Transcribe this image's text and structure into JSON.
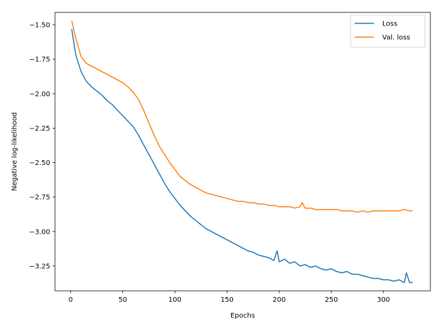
{
  "chart_data": {
    "type": "line",
    "title": "",
    "xlabel": "Epochs",
    "ylabel": "Negative log-likelihood",
    "xlim": [
      -15,
      345
    ],
    "ylim": [
      -3.43,
      -1.41
    ],
    "xticks": [
      0,
      50,
      100,
      150,
      200,
      250,
      300
    ],
    "xtick_labels": [
      "0",
      "50",
      "100",
      "150",
      "200",
      "250",
      "300"
    ],
    "yticks": [
      -1.5,
      -1.75,
      -2.0,
      -2.25,
      -2.5,
      -2.75,
      -3.0,
      -3.25
    ],
    "ytick_labels": [
      "−1.50",
      "−1.75",
      "−2.00",
      "−2.25",
      "−2.50",
      "−2.75",
      "−3.00",
      "−3.25"
    ],
    "grid": false,
    "legend_position": "top-right",
    "series": [
      {
        "name": "Loss",
        "color": "#1f77b4",
        "x": [
          1,
          5,
          10,
          15,
          20,
          25,
          30,
          35,
          40,
          45,
          50,
          55,
          60,
          65,
          70,
          75,
          80,
          85,
          90,
          95,
          100,
          105,
          110,
          115,
          120,
          125,
          130,
          135,
          140,
          145,
          150,
          155,
          160,
          165,
          170,
          175,
          180,
          185,
          190,
          195,
          198,
          200,
          205,
          210,
          215,
          220,
          225,
          230,
          235,
          240,
          245,
          250,
          255,
          260,
          265,
          270,
          275,
          280,
          285,
          290,
          295,
          300,
          305,
          310,
          315,
          320,
          322,
          325,
          328
        ],
        "y": [
          -1.53,
          -1.72,
          -1.84,
          -1.91,
          -1.95,
          -1.98,
          -2.01,
          -2.05,
          -2.08,
          -2.12,
          -2.16,
          -2.2,
          -2.24,
          -2.3,
          -2.37,
          -2.44,
          -2.51,
          -2.58,
          -2.65,
          -2.71,
          -2.76,
          -2.81,
          -2.85,
          -2.89,
          -2.92,
          -2.95,
          -2.98,
          -3.0,
          -3.02,
          -3.04,
          -3.06,
          -3.08,
          -3.1,
          -3.12,
          -3.14,
          -3.15,
          -3.17,
          -3.18,
          -3.19,
          -3.21,
          -3.14,
          -3.22,
          -3.2,
          -3.23,
          -3.22,
          -3.25,
          -3.24,
          -3.26,
          -3.25,
          -3.27,
          -3.28,
          -3.27,
          -3.29,
          -3.3,
          -3.29,
          -3.31,
          -3.31,
          -3.32,
          -3.33,
          -3.34,
          -3.34,
          -3.35,
          -3.35,
          -3.36,
          -3.35,
          -3.37,
          -3.3,
          -3.37,
          -3.37
        ]
      },
      {
        "name": "Val. loss",
        "color": "#ff7f0e",
        "x": [
          1,
          5,
          10,
          15,
          20,
          25,
          30,
          35,
          40,
          45,
          50,
          55,
          60,
          65,
          70,
          75,
          80,
          85,
          90,
          95,
          100,
          105,
          110,
          115,
          120,
          125,
          130,
          135,
          140,
          145,
          150,
          155,
          160,
          165,
          170,
          175,
          180,
          185,
          190,
          195,
          200,
          205,
          210,
          215,
          220,
          222,
          225,
          230,
          235,
          240,
          245,
          250,
          255,
          260,
          265,
          270,
          275,
          280,
          285,
          290,
          295,
          300,
          305,
          310,
          315,
          320,
          325,
          328
        ],
        "y": [
          -1.47,
          -1.6,
          -1.73,
          -1.78,
          -1.8,
          -1.82,
          -1.84,
          -1.86,
          -1.88,
          -1.9,
          -1.92,
          -1.95,
          -1.99,
          -2.04,
          -2.12,
          -2.21,
          -2.3,
          -2.38,
          -2.44,
          -2.5,
          -2.55,
          -2.6,
          -2.63,
          -2.66,
          -2.68,
          -2.7,
          -2.72,
          -2.73,
          -2.74,
          -2.75,
          -2.76,
          -2.77,
          -2.78,
          -2.78,
          -2.79,
          -2.79,
          -2.8,
          -2.8,
          -2.81,
          -2.81,
          -2.82,
          -2.82,
          -2.82,
          -2.83,
          -2.82,
          -2.79,
          -2.83,
          -2.83,
          -2.84,
          -2.84,
          -2.84,
          -2.84,
          -2.84,
          -2.85,
          -2.85,
          -2.85,
          -2.86,
          -2.85,
          -2.86,
          -2.85,
          -2.85,
          -2.85,
          -2.85,
          -2.85,
          -2.85,
          -2.84,
          -2.85,
          -2.85
        ]
      }
    ]
  }
}
